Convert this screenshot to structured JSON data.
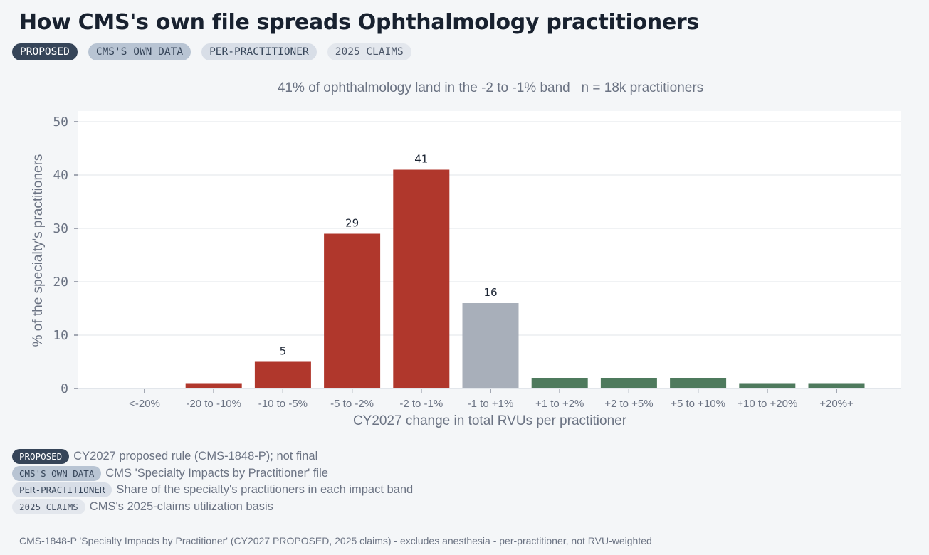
{
  "header": {
    "title": "How CMS's own file spreads Ophthalmology practitioners",
    "tags": [
      "PROPOSED",
      "CMS'S OWN DATA",
      "PER-PRACTITIONER",
      "2025 CLAIMS"
    ]
  },
  "legend": [
    {
      "tag": "PROPOSED",
      "desc": "CY2027 proposed rule (CMS-1848-P); not final"
    },
    {
      "tag": "CMS'S OWN DATA",
      "desc": "CMS 'Specialty Impacts by Practitioner' file"
    },
    {
      "tag": "PER-PRACTITIONER",
      "desc": "Share of the specialty's practitioners in each impact band"
    },
    {
      "tag": "2025 CLAIMS",
      "desc": "CMS's 2025-claims utilization basis"
    }
  ],
  "footer": "CMS-1848-P 'Specialty Impacts by Practitioner' (CY2027 PROPOSED, 2025 claims) - excludes anesthesia - per-practitioner, not RVU-weighted",
  "colors": {
    "loss": "#b0372c",
    "neutral": "#a8afba",
    "gain": "#4e7a5d",
    "grid": "#e6e9ee"
  },
  "chart_data": {
    "type": "bar",
    "subtitle": "41% of ophthalmology land in the -2 to -1% band   n = 18k practitioners",
    "xlabel": "CY2027 change in total RVUs per practitioner",
    "ylabel": "% of the specialty's practitioners",
    "ylim": [
      0,
      50
    ],
    "yticks": [
      0,
      10,
      20,
      30,
      40,
      50
    ],
    "grid": true,
    "categories": [
      "<-20%",
      "-20 to -10%",
      "-10 to -5%",
      "-5 to -2%",
      "-2 to -1%",
      "-1 to +1%",
      "+1 to +2%",
      "+2 to +5%",
      "+5 to +10%",
      "+10 to +20%",
      "+20%+"
    ],
    "values": [
      0,
      1,
      5,
      29,
      41,
      16,
      2,
      2,
      2,
      1,
      1
    ],
    "data_labels": [
      "",
      "",
      "5",
      "29",
      "41",
      "16",
      "",
      "",
      "",
      "",
      ""
    ],
    "bar_groups": [
      "loss",
      "loss",
      "loss",
      "loss",
      "loss",
      "neutral",
      "gain",
      "gain",
      "gain",
      "gain",
      "gain"
    ]
  }
}
